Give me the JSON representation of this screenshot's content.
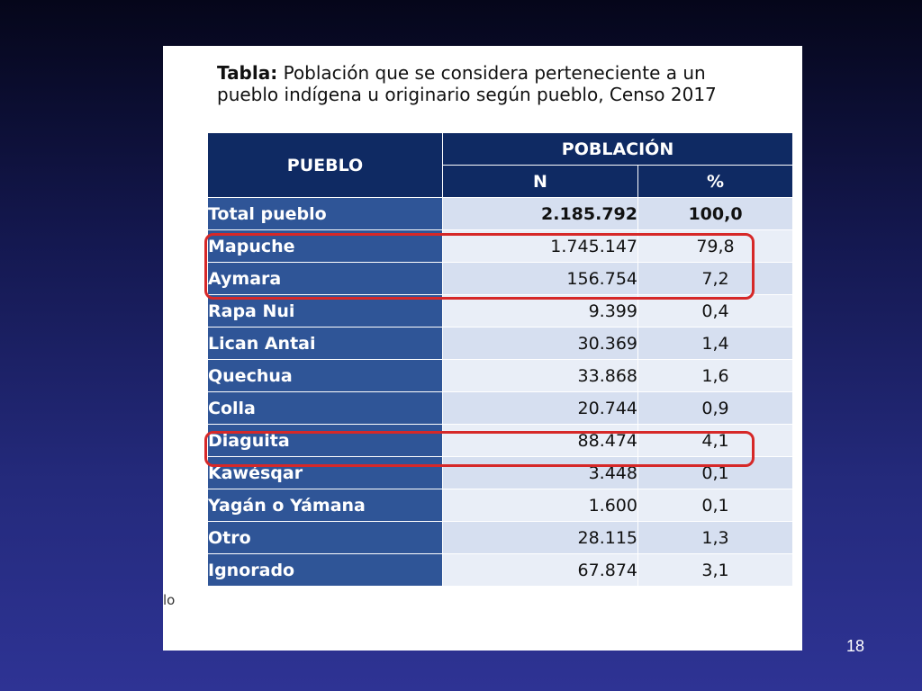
{
  "caption": {
    "label": "Tabla:",
    "line1": "Población que se considera perteneciente a un",
    "line2": "pueblo indígena u originario según pueblo, Censo 2017"
  },
  "table": {
    "header_pueblo": "PUEBLO",
    "header_poblacion": "POBLACIÓN",
    "header_n": "N",
    "header_pct": "%",
    "total": {
      "name": "Total pueblo",
      "n": "2.185.792",
      "pct": "100,0"
    },
    "rows": [
      {
        "name": "Mapuche",
        "n": "1.745.147",
        "pct": "79,8"
      },
      {
        "name": "Aymara",
        "n": "156.754",
        "pct": "7,2"
      },
      {
        "name": "Rapa Nui",
        "n": "9.399",
        "pct": "0,4"
      },
      {
        "name": "Lican Antai",
        "n": "30.369",
        "pct": "1,4"
      },
      {
        "name": "Quechua",
        "n": "33.868",
        "pct": "1,6"
      },
      {
        "name": "Colla",
        "n": "20.744",
        "pct": "0,9"
      },
      {
        "name": "Diaguita",
        "n": "88.474",
        "pct": "4,1"
      },
      {
        "name": "Kawésqar",
        "n": "3.448",
        "pct": "0,1"
      },
      {
        "name": "Yagán o Yámana",
        "n": "1.600",
        "pct": "0,1"
      },
      {
        "name": "Otro",
        "n": "28.115",
        "pct": "1,3"
      },
      {
        "name": "Ignorado",
        "n": "67.874",
        "pct": "3,1"
      }
    ]
  },
  "clipped_text": "lo",
  "page_number": "18",
  "colors": {
    "header_bg": "#0f2a63",
    "name_col_bg": "#2f5597",
    "highlight": "#d62828"
  }
}
